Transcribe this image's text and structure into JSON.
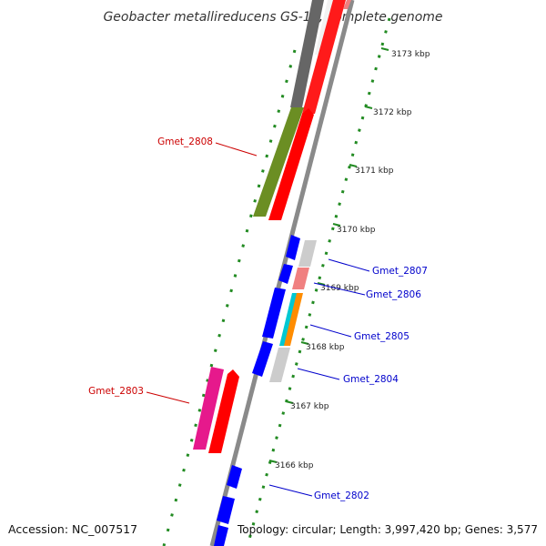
{
  "title": "Geobacter metallireducens GS-15, complete genome",
  "accession_text": "Accession: NC_007517",
  "summary_text": "Topology: circular; Length: 3,997,420 bp; Genes: 3,577",
  "tick_labels": [
    "3173 kbp",
    "3172 kbp",
    "3171 kbp",
    "3170 kbp",
    "3169 kbp",
    "3168 kbp",
    "3167 kbp",
    "3166 kbp"
  ],
  "gene_labels": [
    {
      "text": "Gmet_2808",
      "color": "#cc0000"
    },
    {
      "text": "Gmet_2807",
      "color": "#0000cc"
    },
    {
      "text": "Gmet_2806",
      "color": "#0000cc"
    },
    {
      "text": "Gmet_2805",
      "color": "#0000cc"
    },
    {
      "text": "Gmet_2804",
      "color": "#0000cc"
    },
    {
      "text": "Gmet_2803",
      "color": "#cc0000"
    },
    {
      "text": "Gmet_2802",
      "color": "#0000cc"
    }
  ],
  "colors": {
    "cds_forward": "#0000ff",
    "cds_reverse": "#ff0000",
    "backbone": "#888888",
    "gc_ring": "#228b22",
    "olive_feature": "#6b8e23",
    "magenta_feature": "#e6198c",
    "cyan_feature": "#00c8d2",
    "orange_feature": "#ff8c00",
    "pink_feature": "#f08080",
    "light_grey_feature": "#cccccc",
    "dark_grey_feature": "#666666"
  }
}
